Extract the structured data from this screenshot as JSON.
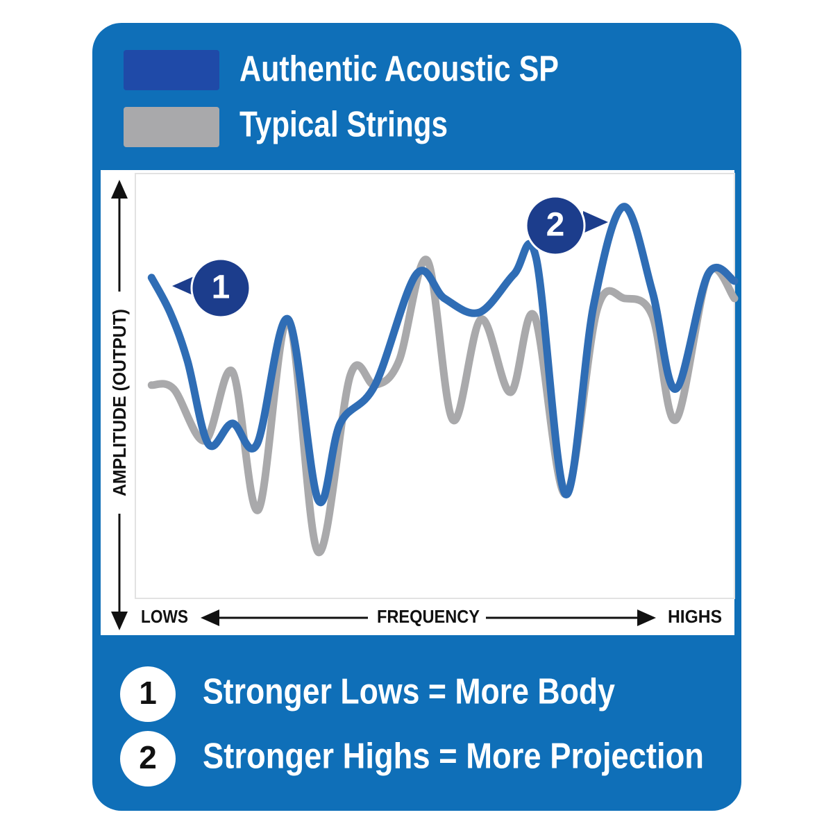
{
  "chart_data": {
    "type": "line",
    "legend": [
      "Authentic Acoustic SP",
      "Typical Strings"
    ],
    "y_label": "AMPLITUDE (OUTPUT)",
    "x_label": "FREQUENCY",
    "x_start_label": "LOWS",
    "x_end_label": "HIGHS",
    "xlim": [
      0,
      100
    ],
    "ylim": [
      0,
      100
    ],
    "series": [
      {
        "name": "Authentic Acoustic SP",
        "color": "#2f6db5",
        "legend_color": "#1f4aa8",
        "x": [
          2.7,
          5.8,
          8.7,
          12.2,
          16.2,
          20.3,
          25.5,
          30.5,
          34.2,
          40.0,
          46.9,
          51.6,
          57.4,
          63.2,
          66.9,
          71.8,
          76.5,
          81.5,
          86.3,
          90.2,
          95.6,
          100
        ],
        "values": [
          75.5,
          67.3,
          55.9,
          36.3,
          41.2,
          36.3,
          65.7,
          23.2,
          41.2,
          50.2,
          76.3,
          70.6,
          67.3,
          76.3,
          80.1,
          24.5,
          69.0,
          92.2,
          72.2,
          49.3,
          76.3,
          74.7
        ]
      },
      {
        "name": "Typical Strings",
        "color": "#a9a9ab",
        "legend_color": "#a9a9ab",
        "x": [
          2.7,
          6.4,
          11.6,
          16.2,
          20.5,
          25.5,
          30.5,
          35.9,
          40.0,
          44.0,
          48.7,
          53.0,
          57.7,
          62.6,
          66.6,
          71.8,
          77.1,
          81.7,
          86.3,
          90.2,
          95.6,
          100
        ],
        "values": [
          50.2,
          49.3,
          37.1,
          53.4,
          20.8,
          65.7,
          10.9,
          52.6,
          50.2,
          55.9,
          79.6,
          42.0,
          65.7,
          48.5,
          66.5,
          24.5,
          68.1,
          70.6,
          66.5,
          42.0,
          76.3,
          70.6
        ]
      }
    ],
    "annotations": [
      {
        "label": "1",
        "x": 2.7,
        "y": 75.5
      },
      {
        "label": "2",
        "x": 81.5,
        "y": 92.2
      }
    ],
    "notes": [
      {
        "number": "1",
        "text": "Stronger Lows = More Body"
      },
      {
        "number": "2",
        "text": "Stronger Highs = More Projection"
      }
    ]
  }
}
